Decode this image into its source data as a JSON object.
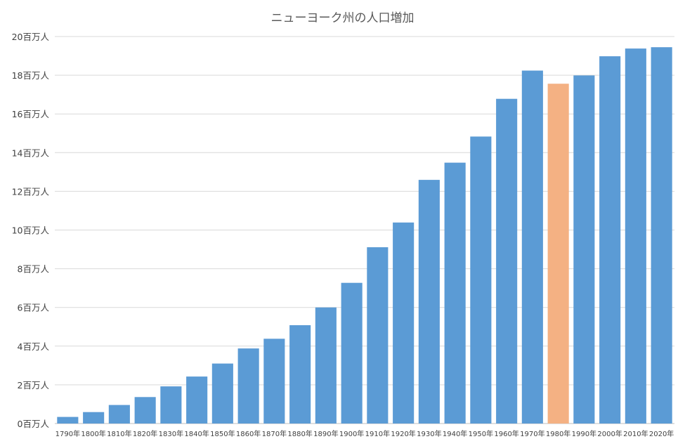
{
  "chart_data": {
    "type": "bar",
    "title": "ニューヨーク州の人口増加",
    "xlabel": "",
    "ylabel": "",
    "categories": [
      "1790年",
      "1800年",
      "1810年",
      "1820年",
      "1830年",
      "1840年",
      "1850年",
      "1860年",
      "1870年",
      "1880年",
      "1890年",
      "1900年",
      "1910年",
      "1920年",
      "1930年",
      "1940年",
      "1950年",
      "1960年",
      "1970年",
      "1980年",
      "1990年",
      "2000年",
      "2010年",
      "2020年"
    ],
    "values": [
      0.34,
      0.59,
      0.96,
      1.37,
      1.92,
      2.43,
      3.1,
      3.88,
      4.38,
      5.08,
      6.0,
      7.27,
      9.11,
      10.39,
      12.59,
      13.48,
      14.83,
      16.78,
      18.24,
      17.56,
      17.99,
      18.98,
      19.38,
      19.45
    ],
    "ylim": [
      0,
      20
    ],
    "yticks": [
      0,
      2,
      4,
      6,
      8,
      10,
      12,
      14,
      16,
      18,
      20
    ],
    "ytick_labels": [
      "0百万人",
      "2百万人",
      "4百万人",
      "6百万人",
      "8百万人",
      "10百万人",
      "12百万人",
      "14百万人",
      "16百万人",
      "18百万人",
      "20百万人"
    ],
    "grid": true,
    "legend": "none",
    "colors": {
      "default": "#5b9bd5",
      "highlight": "#f4b183"
    },
    "highlight_category": "1980年"
  }
}
